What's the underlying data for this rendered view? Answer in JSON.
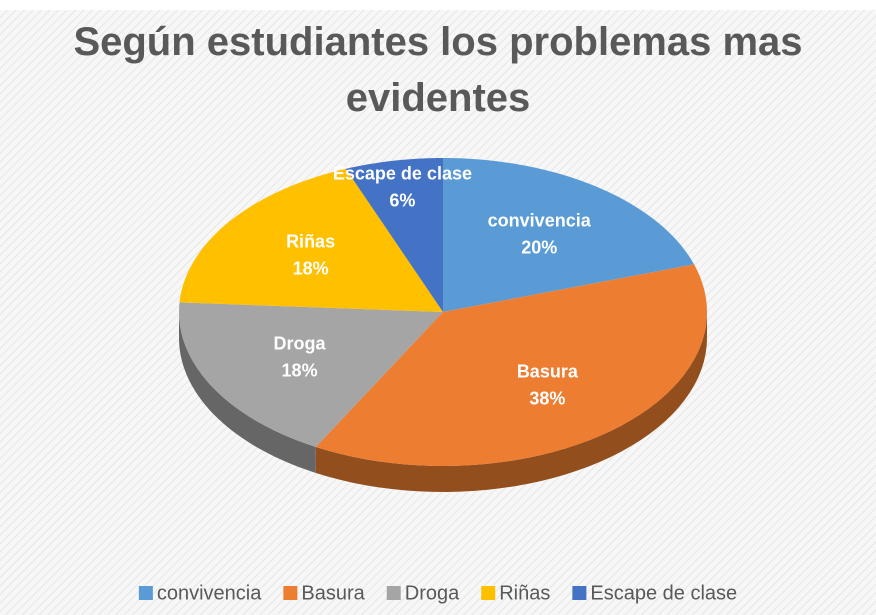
{
  "chart_data": {
    "type": "pie",
    "title": "Según estudiantes los problemas mas evidentes",
    "categories": [
      "convivencia",
      "Basura",
      "Droga",
      "Riñas",
      "Escape de clase"
    ],
    "values": [
      20,
      38,
      18,
      18,
      6
    ],
    "value_labels": [
      "20%",
      "38%",
      "18%",
      "18%",
      "6%"
    ],
    "colors": [
      "#5b9bd5",
      "#ed7d31",
      "#a5a5a5",
      "#ffc000",
      "#4472c4"
    ],
    "legend": "bottom"
  }
}
